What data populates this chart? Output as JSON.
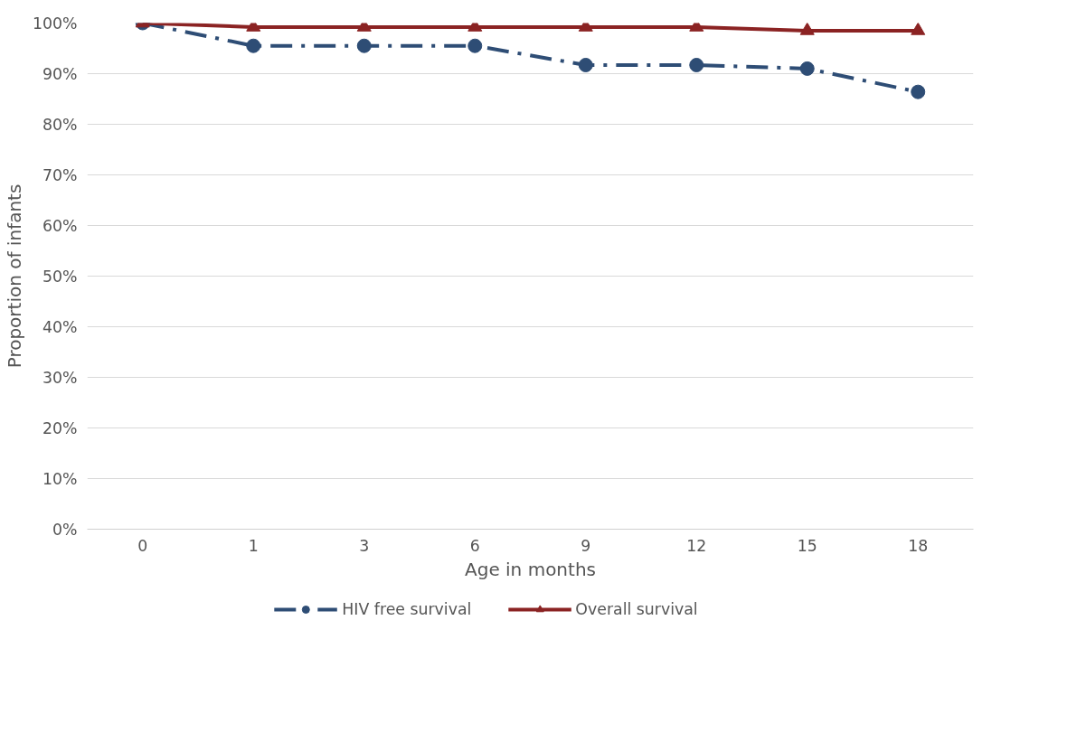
{
  "chart_data": {
    "type": "line",
    "xlabel": "Age in months",
    "ylabel": "Proportion of infants",
    "categories": [
      "0",
      "1",
      "3",
      "6",
      "9",
      "12",
      "15",
      "18"
    ],
    "series": [
      {
        "name": "HIV free survival",
        "color": "#2e4d75",
        "marker": "circle",
        "line_style": "dashed",
        "values": [
          100,
          95.5,
          95.5,
          95.5,
          91.7,
          91.7,
          91.0,
          86.4
        ]
      },
      {
        "name": "Overall survival",
        "color": "#8b2323",
        "marker": "triangle",
        "line_style": "solid",
        "values": [
          100,
          99.2,
          99.2,
          99.2,
          99.2,
          99.2,
          98.5,
          98.5
        ]
      }
    ],
    "ylim": [
      0,
      100
    ],
    "yticks": [
      {
        "value": 0,
        "label": "0%"
      },
      {
        "value": 10,
        "label": "10%"
      },
      {
        "value": 20,
        "label": "20%"
      },
      {
        "value": 30,
        "label": "30%"
      },
      {
        "value": 40,
        "label": "40%"
      },
      {
        "value": 50,
        "label": "50%"
      },
      {
        "value": 60,
        "label": "60%"
      },
      {
        "value": 70,
        "label": "70%"
      },
      {
        "value": 80,
        "label": "80%"
      },
      {
        "value": 90,
        "label": "90%"
      },
      {
        "value": 100,
        "label": "100%"
      }
    ],
    "grid": "y",
    "legend": "bottom"
  }
}
